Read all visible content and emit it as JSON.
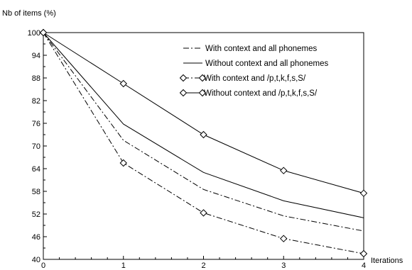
{
  "chart_data": {
    "type": "line",
    "title": "",
    "ylabel": "Nb of items (%)",
    "xlabel": "Iterations",
    "x": [
      0,
      1,
      2,
      3,
      4
    ],
    "xlim": [
      0,
      4
    ],
    "ylim": [
      40,
      100
    ],
    "xticks": [
      0,
      1,
      2,
      3,
      4
    ],
    "yticks": [
      40,
      46,
      52,
      58,
      64,
      70,
      76,
      82,
      88,
      94,
      100
    ],
    "grid": false,
    "legend_position": "top-right",
    "series": [
      {
        "name": "With context and all phonemes",
        "line_style": "dash-dot",
        "marker": "none",
        "color": "#000000",
        "values": [
          100,
          71.5,
          58.5,
          51.5,
          47.5
        ]
      },
      {
        "name": "Without context and all phonemes",
        "line_style": "solid",
        "marker": "none",
        "color": "#000000",
        "values": [
          100,
          75.8,
          63.0,
          55.5,
          51.0
        ]
      },
      {
        "name": "With context and /p,t,k,f,s,S/",
        "line_style": "dash-dot",
        "marker": "diamond",
        "color": "#000000",
        "values": [
          100,
          65.5,
          52.3,
          45.5,
          41.5
        ]
      },
      {
        "name": "Without context and /p,t,k,f,s,S/",
        "line_style": "solid",
        "marker": "diamond",
        "color": "#000000",
        "values": [
          100,
          86.5,
          73.0,
          63.5,
          57.5
        ]
      }
    ]
  }
}
